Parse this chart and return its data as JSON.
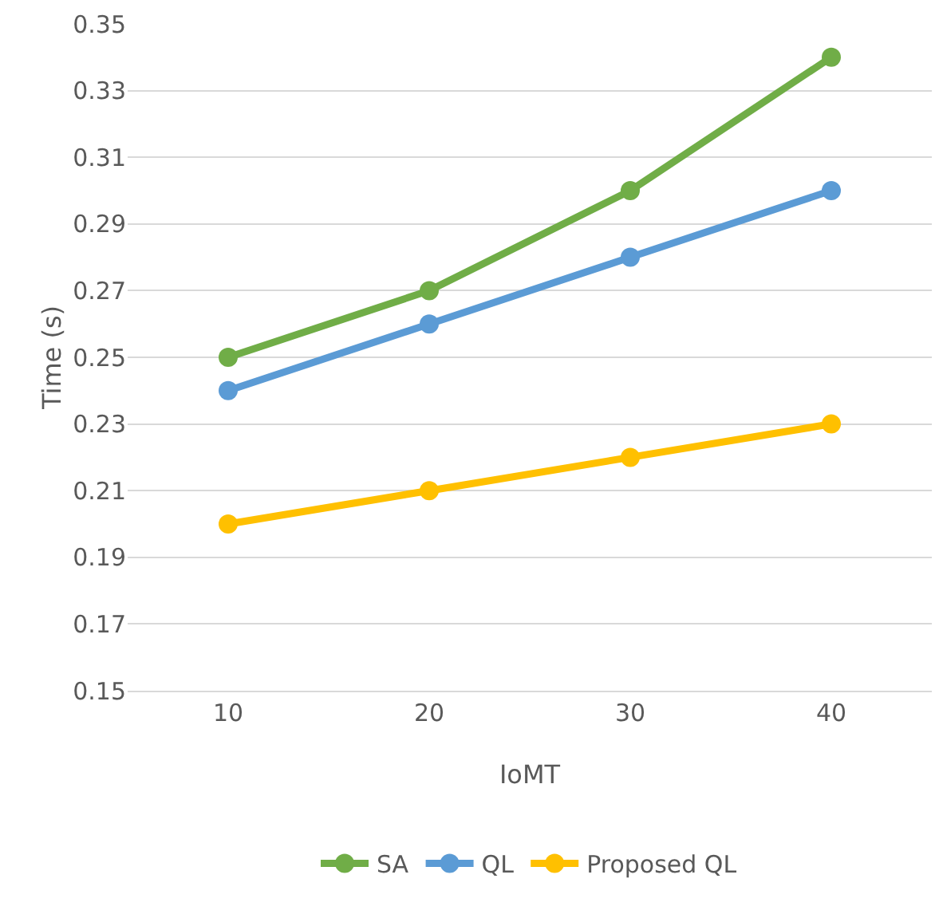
{
  "chart_data": {
    "type": "line",
    "xlabel": "IoMT",
    "ylabel": "Time (s)",
    "categories": [
      "10",
      "20",
      "30",
      "40"
    ],
    "series": [
      {
        "name": "SA",
        "color": "#70ad47",
        "values": [
          0.25,
          0.27,
          0.3,
          0.34
        ]
      },
      {
        "name": "QL",
        "color": "#5b9bd5",
        "values": [
          0.24,
          0.26,
          0.28,
          0.3
        ]
      },
      {
        "name": "Proposed QL",
        "color": "#ffc000",
        "values": [
          0.2,
          0.21,
          0.22,
          0.23
        ]
      }
    ],
    "ylim": [
      0.15,
      0.35
    ],
    "yticks": [
      0.15,
      0.17,
      0.19,
      0.21,
      0.23,
      0.25,
      0.27,
      0.29,
      0.31,
      0.33,
      0.35
    ],
    "grid": "y",
    "legend": "bottom",
    "marker": "circle",
    "line_style": "solid"
  }
}
